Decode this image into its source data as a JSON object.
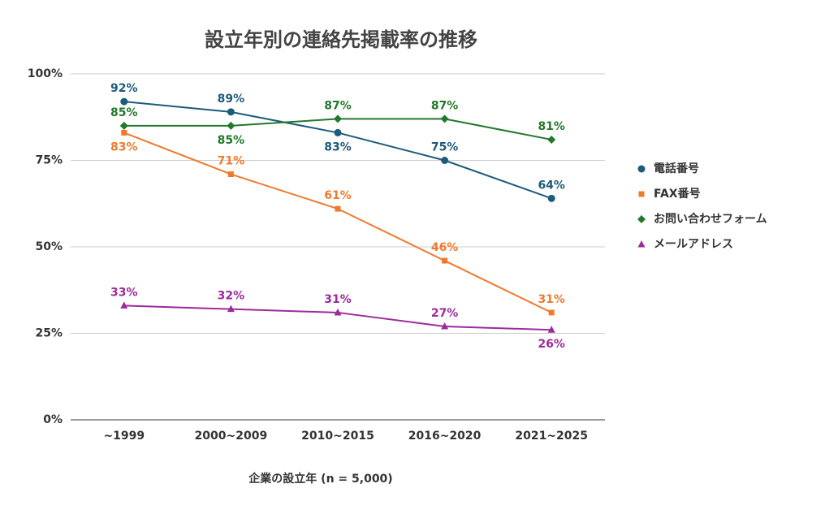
{
  "chart_data": {
    "type": "line",
    "title": "設立年別の連絡先掲載率の推移",
    "x_label": "企業の設立年 (n = 5,000)",
    "categories": [
      "~1999",
      "2000~2009",
      "2010~2015",
      "2016~2020",
      "2021~2025"
    ],
    "ylim": [
      0,
      100
    ],
    "yticks": [
      {
        "value": 0,
        "label": "0%"
      },
      {
        "value": 25,
        "label": "25%"
      },
      {
        "value": 50,
        "label": "50%"
      },
      {
        "value": 75,
        "label": "75%"
      },
      {
        "value": 100,
        "label": "100%"
      }
    ],
    "grid": true,
    "legend": "right",
    "series": [
      {
        "name": "電話番号",
        "color": "#1c5b7a",
        "marker": "circle",
        "values": [
          92,
          89,
          83,
          75,
          64
        ],
        "value_labels": [
          "92%",
          "89%",
          "83%",
          "75%",
          "64%"
        ]
      },
      {
        "name": "FAX番号",
        "color": "#ef7a2d",
        "marker": "square",
        "values": [
          83,
          71,
          61,
          46,
          31
        ],
        "value_labels": [
          "83%",
          "71%",
          "61%",
          "46%",
          "31%"
        ]
      },
      {
        "name": "お問い合わせフォーム",
        "color": "#23782b",
        "marker": "diamond",
        "values": [
          85,
          85,
          87,
          87,
          81
        ],
        "value_labels": [
          "85%",
          "85%",
          "87%",
          "87%",
          "81%"
        ]
      },
      {
        "name": "メールアドレス",
        "color": "#9b2b9c",
        "marker": "triangle",
        "values": [
          33,
          32,
          31,
          27,
          26
        ],
        "value_labels": [
          "33%",
          "32%",
          "31%",
          "27%",
          "26%"
        ]
      }
    ]
  }
}
